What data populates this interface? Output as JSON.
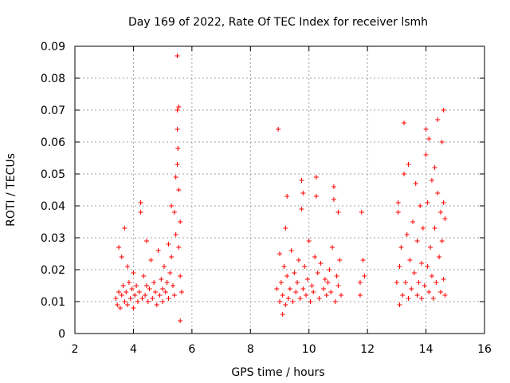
{
  "chart_data": {
    "type": "scatter",
    "title": "Day 169 of 2022, Rate Of TEC Index for receiver lsmh",
    "xlabel": "GPS time / hours",
    "ylabel": "ROTI / TECUs",
    "xlim": [
      2,
      16
    ],
    "ylim": [
      0,
      0.09
    ],
    "x_ticks": [
      "2",
      "4",
      "6",
      "8",
      "10",
      "12",
      "14",
      "16"
    ],
    "y_ticks": [
      "0",
      "0.01",
      "0.02",
      "0.03",
      "0.04",
      "0.05",
      "0.06",
      "0.07",
      "0.08",
      "0.09"
    ],
    "grid": true,
    "marker": "+",
    "color": "#ff0000",
    "series": [
      {
        "points": [
          [
            3.4,
            0.011
          ],
          [
            3.45,
            0.009
          ],
          [
            3.5,
            0.013
          ],
          [
            3.5,
            0.027
          ],
          [
            3.55,
            0.008
          ],
          [
            3.6,
            0.012
          ],
          [
            3.6,
            0.024
          ],
          [
            3.65,
            0.015
          ],
          [
            3.7,
            0.01
          ],
          [
            3.7,
            0.033
          ],
          [
            3.75,
            0.013
          ],
          [
            3.8,
            0.009
          ],
          [
            3.8,
            0.021
          ],
          [
            3.85,
            0.016
          ],
          [
            3.9,
            0.011
          ],
          [
            3.95,
            0.014
          ],
          [
            4.0,
            0.008
          ],
          [
            4.0,
            0.019
          ],
          [
            4.05,
            0.012
          ],
          [
            4.1,
            0.015
          ],
          [
            4.15,
            0.01
          ],
          [
            4.2,
            0.013
          ],
          [
            4.25,
            0.041
          ],
          [
            4.25,
            0.038
          ],
          [
            4.3,
            0.011
          ],
          [
            4.35,
            0.018
          ],
          [
            4.4,
            0.012
          ],
          [
            4.45,
            0.015
          ],
          [
            4.45,
            0.029
          ],
          [
            4.5,
            0.01
          ],
          [
            4.55,
            0.014
          ],
          [
            4.6,
            0.023
          ],
          [
            4.65,
            0.011
          ],
          [
            4.7,
            0.016
          ],
          [
            4.75,
            0.013
          ],
          [
            4.8,
            0.009
          ],
          [
            4.85,
            0.026
          ],
          [
            4.9,
            0.012
          ],
          [
            4.95,
            0.017
          ],
          [
            5.0,
            0.014
          ],
          [
            5.0,
            0.01
          ],
          [
            5.05,
            0.021
          ],
          [
            5.1,
            0.013
          ],
          [
            5.15,
            0.016
          ],
          [
            5.2,
            0.028
          ],
          [
            5.2,
            0.011
          ],
          [
            5.25,
            0.019
          ],
          [
            5.3,
            0.024
          ],
          [
            5.3,
            0.04
          ],
          [
            5.35,
            0.015
          ],
          [
            5.4,
            0.038
          ],
          [
            5.4,
            0.012
          ],
          [
            5.45,
            0.049
          ],
          [
            5.45,
            0.031
          ],
          [
            5.5,
            0.053
          ],
          [
            5.5,
            0.07
          ],
          [
            5.5,
            0.087
          ],
          [
            5.5,
            0.064
          ],
          [
            5.52,
            0.058
          ],
          [
            5.55,
            0.045
          ],
          [
            5.55,
            0.071
          ],
          [
            5.55,
            0.027
          ],
          [
            5.6,
            0.035
          ],
          [
            5.6,
            0.018
          ],
          [
            5.6,
            0.004
          ],
          [
            5.65,
            0.013
          ],
          [
            8.95,
            0.064
          ],
          [
            8.9,
            0.014
          ],
          [
            9.0,
            0.01
          ],
          [
            9.0,
            0.025
          ],
          [
            9.05,
            0.016
          ],
          [
            9.1,
            0.006
          ],
          [
            9.1,
            0.012
          ],
          [
            9.15,
            0.021
          ],
          [
            9.2,
            0.033
          ],
          [
            9.2,
            0.009
          ],
          [
            9.25,
            0.043
          ],
          [
            9.25,
            0.018
          ],
          [
            9.3,
            0.011
          ],
          [
            9.35,
            0.014
          ],
          [
            9.4,
            0.026
          ],
          [
            9.45,
            0.01
          ],
          [
            9.5,
            0.019
          ],
          [
            9.55,
            0.013
          ],
          [
            9.6,
            0.016
          ],
          [
            9.65,
            0.023
          ],
          [
            9.7,
            0.011
          ],
          [
            9.75,
            0.039
          ],
          [
            9.75,
            0.048
          ],
          [
            9.8,
            0.014
          ],
          [
            9.8,
            0.044
          ],
          [
            9.85,
            0.021
          ],
          [
            9.9,
            0.012
          ],
          [
            9.95,
            0.017
          ],
          [
            10.0,
            0.029
          ],
          [
            10.05,
            0.01
          ],
          [
            10.1,
            0.015
          ],
          [
            10.15,
            0.013
          ],
          [
            10.2,
            0.024
          ],
          [
            10.25,
            0.049
          ],
          [
            10.25,
            0.043
          ],
          [
            10.3,
            0.019
          ],
          [
            10.35,
            0.011
          ],
          [
            10.4,
            0.022
          ],
          [
            10.5,
            0.014
          ],
          [
            10.55,
            0.017
          ],
          [
            10.6,
            0.012
          ],
          [
            10.65,
            0.016
          ],
          [
            10.7,
            0.02
          ],
          [
            10.75,
            0.013
          ],
          [
            10.8,
            0.027
          ],
          [
            10.85,
            0.042
          ],
          [
            10.85,
            0.046
          ],
          [
            10.9,
            0.01
          ],
          [
            10.95,
            0.018
          ],
          [
            11.0,
            0.038
          ],
          [
            11.0,
            0.015
          ],
          [
            11.05,
            0.023
          ],
          [
            11.1,
            0.012
          ],
          [
            11.75,
            0.016
          ],
          [
            11.75,
            0.012
          ],
          [
            11.8,
            0.038
          ],
          [
            11.85,
            0.023
          ],
          [
            11.9,
            0.018
          ],
          [
            13.0,
            0.016
          ],
          [
            13.05,
            0.038
          ],
          [
            13.05,
            0.041
          ],
          [
            13.1,
            0.021
          ],
          [
            13.1,
            0.009
          ],
          [
            13.15,
            0.027
          ],
          [
            13.2,
            0.012
          ],
          [
            13.25,
            0.05
          ],
          [
            13.25,
            0.066
          ],
          [
            13.3,
            0.016
          ],
          [
            13.35,
            0.031
          ],
          [
            13.4,
            0.011
          ],
          [
            13.4,
            0.053
          ],
          [
            13.45,
            0.023
          ],
          [
            13.5,
            0.014
          ],
          [
            13.55,
            0.035
          ],
          [
            13.6,
            0.019
          ],
          [
            13.65,
            0.047
          ],
          [
            13.7,
            0.012
          ],
          [
            13.7,
            0.029
          ],
          [
            13.75,
            0.016
          ],
          [
            13.8,
            0.04
          ],
          [
            13.85,
            0.022
          ],
          [
            13.85,
            0.011
          ],
          [
            13.9,
            0.033
          ],
          [
            13.95,
            0.015
          ],
          [
            14.0,
            0.064
          ],
          [
            14.0,
            0.056
          ],
          [
            14.05,
            0.021
          ],
          [
            14.05,
            0.041
          ],
          [
            14.1,
            0.013
          ],
          [
            14.1,
            0.061
          ],
          [
            14.15,
            0.027
          ],
          [
            14.2,
            0.018
          ],
          [
            14.2,
            0.048
          ],
          [
            14.25,
            0.011
          ],
          [
            14.3,
            0.033
          ],
          [
            14.3,
            0.052
          ],
          [
            14.35,
            0.016
          ],
          [
            14.4,
            0.044
          ],
          [
            14.4,
            0.067
          ],
          [
            14.45,
            0.024
          ],
          [
            14.5,
            0.013
          ],
          [
            14.5,
            0.038
          ],
          [
            14.55,
            0.029
          ],
          [
            14.55,
            0.06
          ],
          [
            14.6,
            0.07
          ],
          [
            14.6,
            0.017
          ],
          [
            14.6,
            0.041
          ],
          [
            14.65,
            0.012
          ],
          [
            14.65,
            0.036
          ]
        ]
      }
    ]
  }
}
